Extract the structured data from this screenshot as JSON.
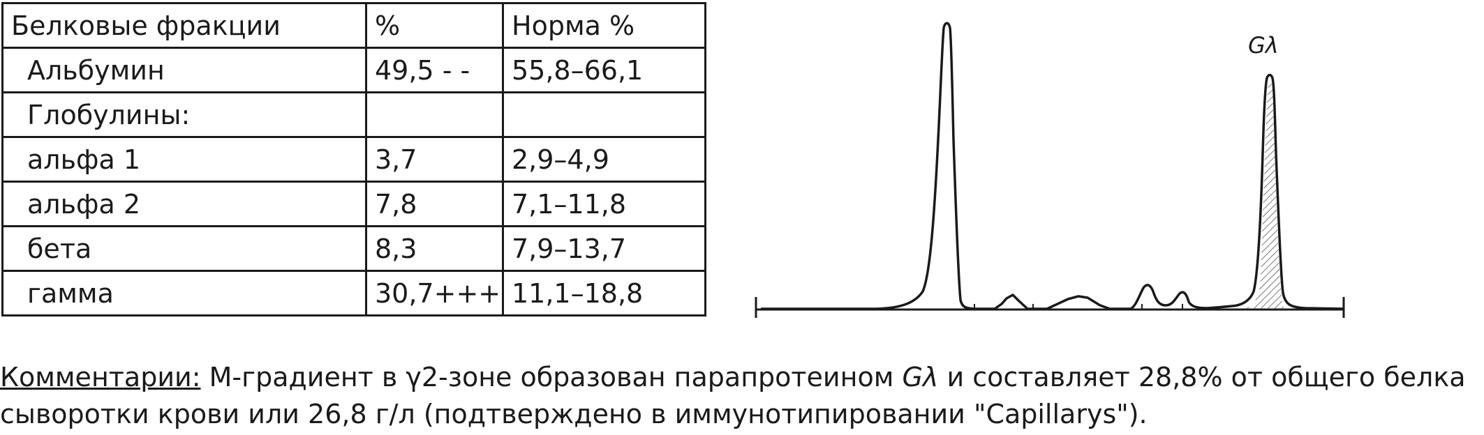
{
  "table": {
    "header": {
      "fraction": "Белковые фракции",
      "percent": "%",
      "norm": "Норма %"
    },
    "rows": [
      {
        "fraction": "Альбумин",
        "percent": "49,5 - -",
        "norm": "55,8–66,1"
      },
      {
        "fraction": "Глобулины:",
        "percent": "",
        "norm": ""
      },
      {
        "fraction": "альфа 1",
        "percent": "3,7",
        "norm": "2,9–4,9"
      },
      {
        "fraction": "альфа 2",
        "percent": "7,8",
        "norm": "7,1–11,8"
      },
      {
        "fraction": "бета",
        "percent": "8,3",
        "norm": "7,9–13,7"
      },
      {
        "fraction": "гамма",
        "percent": "30,7+++",
        "norm": "11,1–18,8"
      }
    ]
  },
  "electrophoregram": {
    "peak_label": "Gλ"
  },
  "comment": {
    "label": "Комментарии:",
    "text_part1": " М-градиент в γ2-зоне образован парапротеином ",
    "paraprotein": "Gλ",
    "text_part2": " и составляет 28,8% от общего белка сыворотки крови или 26,8 г/л (подтверждено в иммунотипировании \"Capillarys\")."
  },
  "colors": {
    "ink": "#1a1a1a",
    "background": "#ffffff"
  }
}
